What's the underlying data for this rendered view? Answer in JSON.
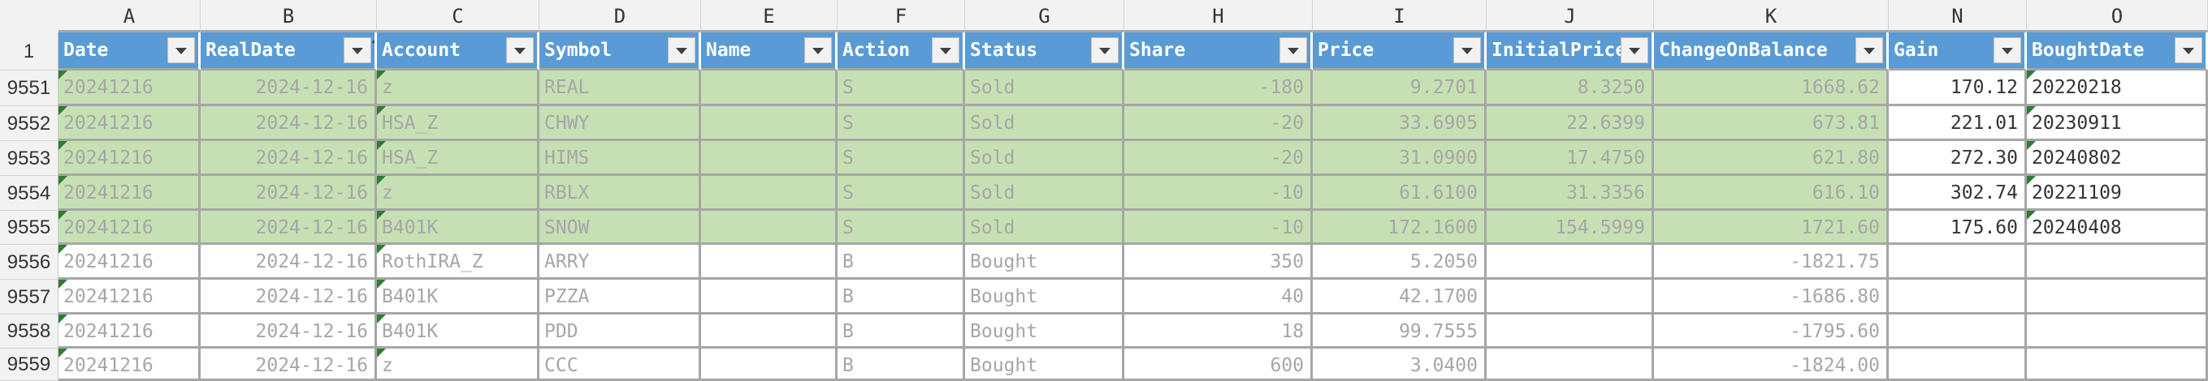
{
  "column_letters": [
    "A",
    "B",
    "C",
    "D",
    "E",
    "F",
    "G",
    "H",
    "I",
    "J",
    "K",
    "N",
    "O"
  ],
  "header_row_number": "1",
  "headers": [
    "Date",
    "RealDate",
    "Account",
    "Symbol",
    "Name",
    "Action",
    "Status",
    "Share",
    "Price",
    "InitialPrice",
    "ChangeOnBalance",
    "Gain",
    "BoughtDate"
  ],
  "sorted_column": "RealDate",
  "rows": [
    {
      "num": "9551",
      "highlight": "green",
      "cells": [
        "20241216",
        "2024-12-16",
        "z",
        "REAL",
        "",
        "S",
        "Sold",
        "-180",
        "9.2701",
        "8.3250",
        "1668.62",
        "170.12",
        "20220218"
      ]
    },
    {
      "num": "9552",
      "highlight": "green",
      "cells": [
        "20241216",
        "2024-12-16",
        "HSA_Z",
        "CHWY",
        "",
        "S",
        "Sold",
        "-20",
        "33.6905",
        "22.6399",
        "673.81",
        "221.01",
        "20230911"
      ]
    },
    {
      "num": "9553",
      "highlight": "green",
      "cells": [
        "20241216",
        "2024-12-16",
        "HSA_Z",
        "HIMS",
        "",
        "S",
        "Sold",
        "-20",
        "31.0900",
        "17.4750",
        "621.80",
        "272.30",
        "20240802"
      ]
    },
    {
      "num": "9554",
      "highlight": "green",
      "cells": [
        "20241216",
        "2024-12-16",
        "z",
        "RBLX",
        "",
        "S",
        "Sold",
        "-10",
        "61.6100",
        "31.3356",
        "616.10",
        "302.74",
        "20221109"
      ]
    },
    {
      "num": "9555",
      "highlight": "green",
      "cells": [
        "20241216",
        "2024-12-16",
        "B401K",
        "SNOW",
        "",
        "S",
        "Sold",
        "-10",
        "172.1600",
        "154.5999",
        "1721.60",
        "175.60",
        "20240408"
      ]
    },
    {
      "num": "9556",
      "highlight": "white",
      "cells": [
        "20241216",
        "2024-12-16",
        "RothIRA_Z",
        "ARRY",
        "",
        "B",
        "Bought",
        "350",
        "5.2050",
        "",
        "-1821.75",
        "",
        ""
      ]
    },
    {
      "num": "9557",
      "highlight": "white",
      "cells": [
        "20241216",
        "2024-12-16",
        "B401K",
        "PZZA",
        "",
        "B",
        "Bought",
        "40",
        "42.1700",
        "",
        "-1686.80",
        "",
        ""
      ]
    },
    {
      "num": "9558",
      "highlight": "white",
      "cells": [
        "20241216",
        "2024-12-16",
        "B401K",
        "PDD",
        "",
        "B",
        "Bought",
        "18",
        "99.7555",
        "",
        "-1795.60",
        "",
        ""
      ]
    },
    {
      "num": "9559",
      "highlight": "white",
      "cells": [
        "20241216",
        "2024-12-16",
        "z",
        "CCC",
        "",
        "B",
        "Bought",
        "600",
        "3.0400",
        "",
        "-1824.00",
        "",
        ""
      ]
    }
  ],
  "colors": {
    "header_blue": "#5b9bd5",
    "sold_green": "#c6e0b4",
    "indicator_green": "#2e7d32"
  }
}
